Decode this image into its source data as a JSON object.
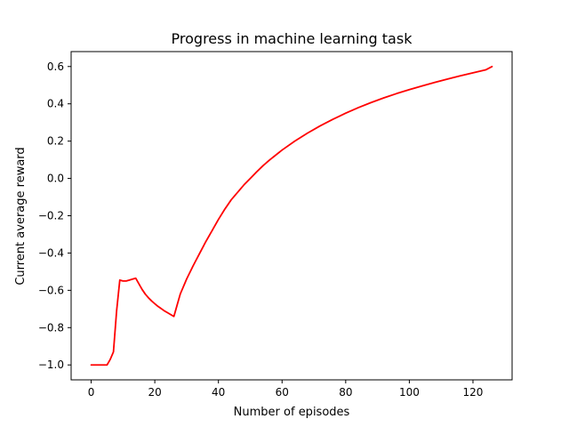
{
  "chart_data": {
    "type": "line",
    "title": "Progress in machine learning task",
    "xlabel": "Number of episodes",
    "ylabel": "Current average reward",
    "xlim": [
      -6.3,
      132.3
    ],
    "ylim": [
      -1.08,
      0.68
    ],
    "x_ticks": [
      0,
      20,
      40,
      60,
      80,
      100,
      120
    ],
    "y_ticks": [
      -1.0,
      -0.8,
      -0.6,
      -0.4,
      -0.2,
      0.0,
      0.2,
      0.4,
      0.6
    ],
    "x_tick_labels": [
      "0",
      "20",
      "40",
      "60",
      "80",
      "100",
      "120"
    ],
    "y_tick_labels": [
      "−1.0",
      "−0.8",
      "−0.6",
      "−0.4",
      "−0.2",
      "0.0",
      "0.2",
      "0.4",
      "0.6"
    ],
    "grid": false,
    "series": [
      {
        "color": "#ff0000",
        "x": [
          0,
          1,
          2,
          3,
          4,
          5,
          6,
          7,
          8,
          9,
          10,
          11,
          12,
          13,
          14,
          15,
          16,
          17,
          18,
          19,
          20,
          21,
          22,
          23,
          24,
          25,
          26,
          27,
          28,
          30,
          32,
          34,
          36,
          38,
          40,
          42,
          44,
          46,
          48,
          50,
          52,
          54,
          56,
          58,
          60,
          64,
          68,
          72,
          76,
          80,
          84,
          88,
          92,
          96,
          100,
          104,
          108,
          112,
          116,
          120,
          124,
          126
        ],
        "y": [
          -1.0,
          -1.0,
          -1.0,
          -1.0,
          -1.0,
          -1.0,
          -0.97,
          -0.93,
          -0.71,
          -0.545,
          -0.55,
          -0.55,
          -0.545,
          -0.54,
          -0.535,
          -0.565,
          -0.595,
          -0.62,
          -0.64,
          -0.657,
          -0.672,
          -0.686,
          -0.698,
          -0.71,
          -0.72,
          -0.73,
          -0.74,
          -0.68,
          -0.62,
          -0.54,
          -0.47,
          -0.405,
          -0.34,
          -0.28,
          -0.22,
          -0.165,
          -0.115,
          -0.075,
          -0.035,
          0.0,
          0.035,
          0.068,
          0.098,
          0.125,
          0.152,
          0.2,
          0.243,
          0.282,
          0.317,
          0.35,
          0.38,
          0.407,
          0.432,
          0.455,
          0.476,
          0.496,
          0.515,
          0.533,
          0.55,
          0.566,
          0.582,
          0.6
        ]
      }
    ]
  }
}
